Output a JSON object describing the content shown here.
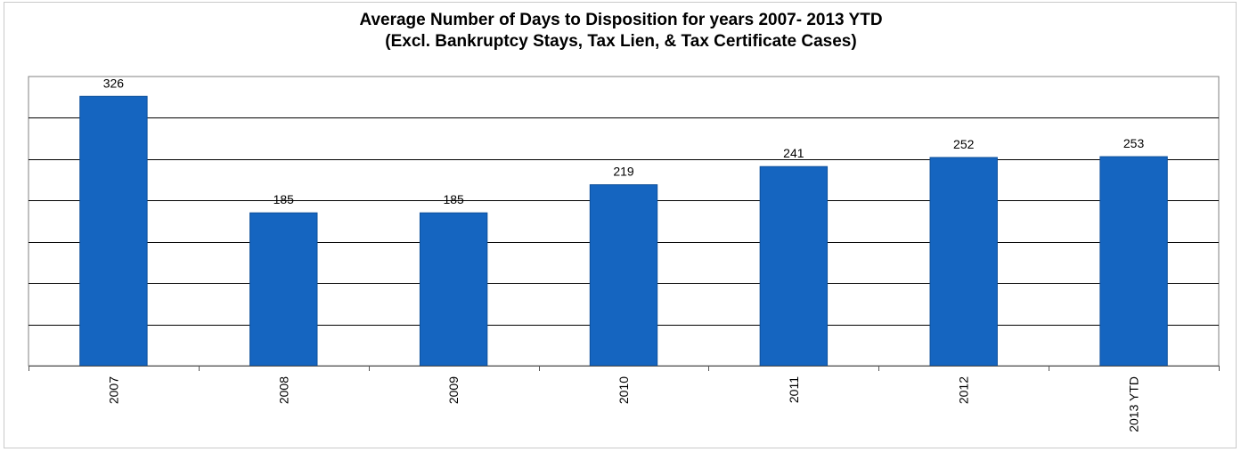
{
  "chart_data": {
    "type": "bar",
    "title": "Average Number of Days to Disposition  for years 2007- 2013 YTD",
    "subtitle": "(Excl. Bankruptcy Stays, Tax Lien, & Tax Certificate Cases)",
    "categories": [
      "2007",
      "2008",
      "2009",
      "2010",
      "2011",
      "2012",
      "2013 YTD"
    ],
    "values": [
      326,
      185,
      185,
      219,
      241,
      252,
      253
    ],
    "xlabel": "",
    "ylabel": "",
    "ylim": [
      0,
      350
    ],
    "y_gridline_step": 50,
    "y_tick_labels_visible": false,
    "grid": true,
    "legend": "none",
    "colors": {
      "bar": "#1565c0",
      "gridline": "#000000",
      "axis": "#808080"
    }
  }
}
